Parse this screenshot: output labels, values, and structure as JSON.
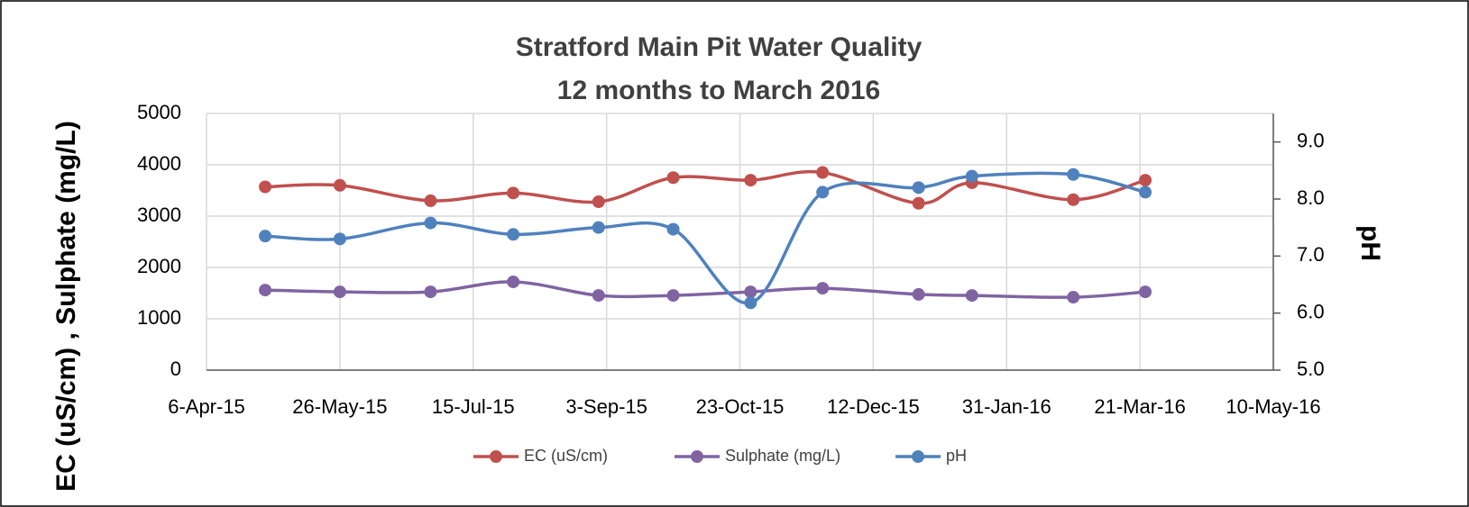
{
  "chart_data": {
    "type": "line",
    "title": "Stratford Main Pit Water Quality",
    "subtitle": "12 months to March 2016",
    "y_label": "EC (uS/cm) , Sulphate (mg/L)",
    "y2_label": "pH",
    "x": [
      "2015-04-28",
      "2015-05-26",
      "2015-06-29",
      "2015-07-30",
      "2015-08-31",
      "2015-09-28",
      "2015-10-27",
      "2015-11-23",
      "2015-12-29",
      "2016-01-18",
      "2016-02-25",
      "2016-03-23"
    ],
    "series": [
      {
        "name": "EC  (uS/cm)",
        "color": "#c0504d",
        "values": [
          3570,
          3600,
          3300,
          3450,
          3280,
          3750,
          3700,
          3850,
          3250,
          3650,
          3320,
          3700
        ]
      },
      {
        "name": "Sulphate  (mg/L)",
        "color": "#8064a2",
        "values": [
          1560,
          1525,
          1525,
          1720,
          1455,
          1455,
          1525,
          1595,
          1475,
          1455,
          1420,
          1525
        ]
      },
      {
        "name": "pH",
        "color": "#4f81bd",
        "axis": "y2",
        "values": [
          7.35,
          7.3,
          7.58,
          7.38,
          7.5,
          7.47,
          6.18,
          8.12,
          8.2,
          8.4,
          8.43,
          8.12
        ]
      }
    ],
    "xlim": [
      "2015-04-06",
      "2016-05-10"
    ],
    "xticks": [
      {
        "value": "2015-04-06",
        "label": "6-Apr-15"
      },
      {
        "value": "2015-05-26",
        "label": "26-May-15"
      },
      {
        "value": "2015-07-15",
        "label": "15-Jul-15"
      },
      {
        "value": "2015-09-03",
        "label": "3-Sep-15"
      },
      {
        "value": "2015-10-23",
        "label": "23-Oct-15"
      },
      {
        "value": "2015-12-12",
        "label": "12-Dec-15"
      },
      {
        "value": "2016-01-31",
        "label": "31-Jan-16"
      },
      {
        "value": "2016-03-21",
        "label": "21-Mar-16"
      },
      {
        "value": "2016-05-10",
        "label": "10-May-16"
      }
    ],
    "ylim": [
      0,
      5000
    ],
    "yticks": [
      0,
      1000,
      2000,
      3000,
      4000,
      5000
    ],
    "y2lim": [
      5,
      9.5
    ],
    "y2ticks": [
      {
        "value": 5,
        "label": "5.0"
      },
      {
        "value": 6,
        "label": "6.0"
      },
      {
        "value": 7,
        "label": "7.0"
      },
      {
        "value": 8,
        "label": "8.0"
      },
      {
        "value": 9,
        "label": "9.0"
      }
    ],
    "grid": true,
    "legend": "bottom"
  }
}
